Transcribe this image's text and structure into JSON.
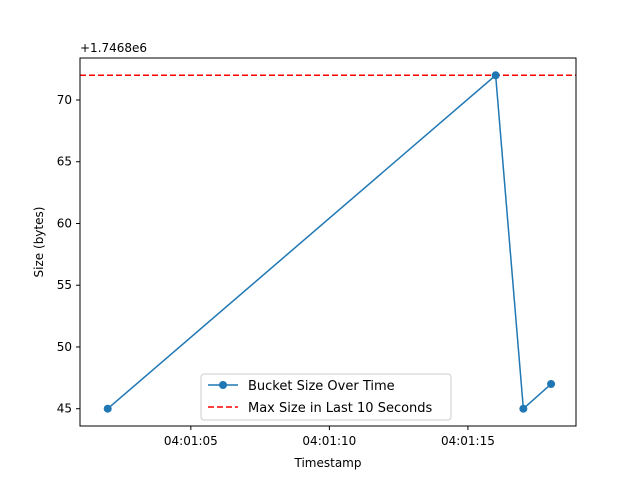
{
  "chart_data": {
    "type": "line",
    "xlabel": "Timestamp",
    "ylabel": "Size (bytes)",
    "offset_label": "+1.7468e6",
    "x_tick_labels": [
      "04:01:05",
      "04:01:10",
      "04:01:15"
    ],
    "x_tick_values": [
      5,
      10,
      15
    ],
    "y_ticks": [
      45,
      50,
      55,
      60,
      65,
      70
    ],
    "xlim": [
      1.0,
      18.9
    ],
    "ylim": [
      43.6,
      73.4
    ],
    "grid": false,
    "legend_position": "lower center",
    "series": [
      {
        "name": "Bucket Size Over Time",
        "color": "#1f77b4",
        "marker": "circle",
        "x": [
          2,
          16,
          17,
          18
        ],
        "y": [
          45,
          72,
          45,
          47
        ]
      }
    ],
    "reference_lines": [
      {
        "name": "Max Size in Last 10 Seconds",
        "color": "#ff0000",
        "style": "dashed",
        "y": 72
      }
    ]
  }
}
